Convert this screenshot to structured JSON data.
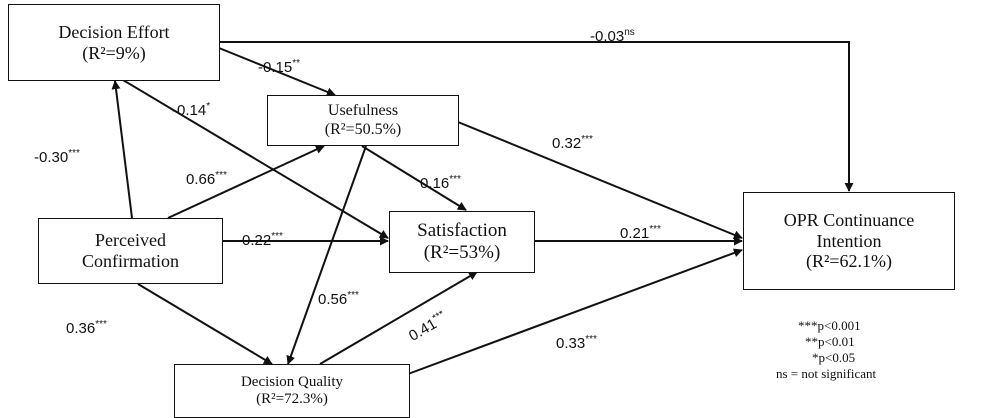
{
  "nodes": {
    "decision_effort": {
      "name": "Decision Effort",
      "r2": "(R²=9%)"
    },
    "usefulness": {
      "name": "Usefulness",
      "r2": "(R²=50.5%)"
    },
    "perceived_confirmation": {
      "line1": "Perceived",
      "line2": "Confirmation"
    },
    "satisfaction": {
      "name": "Satisfaction",
      "r2": "(R²=53%)"
    },
    "decision_quality": {
      "name": "Decision Quality",
      "r2": "(R²=72.3%)"
    },
    "opr": {
      "line1": "OPR Continuance",
      "line2": "Intention",
      "r2": "(R²=62.1%)"
    }
  },
  "paths": {
    "de_opr": {
      "coef": "-0.03",
      "sig": "ns"
    },
    "de_use": {
      "coef": "-0.15",
      "sig": "**"
    },
    "de_sat": {
      "coef": "-0.14",
      "sig": "*"
    },
    "pc_de": {
      "coef": "-0.30",
      "sig": "***"
    },
    "pc_use": {
      "coef": "0.66",
      "sig": "***"
    },
    "pc_sat": {
      "coef": "0.22",
      "sig": "***"
    },
    "pc_dq": {
      "coef": "0.36",
      "sig": "***"
    },
    "use_opr": {
      "coef": "0.32",
      "sig": "***"
    },
    "use_sat": {
      "coef": "0.16",
      "sig": "***"
    },
    "use_dq": {
      "coef": "0.56",
      "sig": "***"
    },
    "sat_opr": {
      "coef": "0.21",
      "sig": "***"
    },
    "dq_sat": {
      "coef": "0.41",
      "sig": "***"
    },
    "dq_opr": {
      "coef": "0.33",
      "sig": "***"
    }
  },
  "legend": [
    "***p<0.001",
    "**p<0.01",
    "*p<0.05",
    "ns = not significant"
  ]
}
